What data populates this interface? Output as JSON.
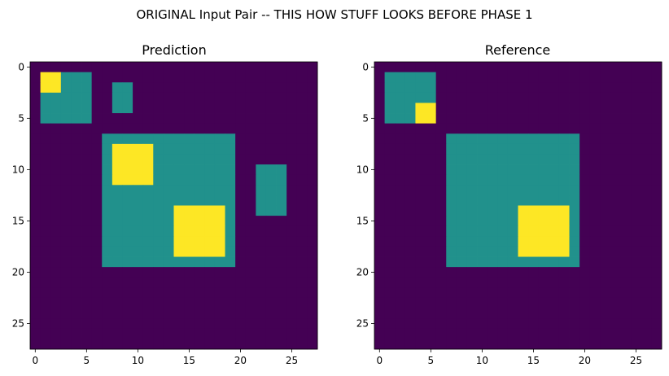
{
  "figure": {
    "suptitle": "ORIGINAL Input Pair -- THIS HOW STUFF LOOKS BEFORE PHASE 1"
  },
  "colors": {
    "background": "#440154",
    "teal": "#21918c",
    "yellow": "#fde725"
  },
  "chart_data": [
    {
      "type": "heatmap",
      "title": "Prediction",
      "grid_size": [
        28,
        28
      ],
      "xlim": [
        -0.5,
        27.5
      ],
      "ylim": [
        27.5,
        -0.5
      ],
      "xticks": [
        0,
        5,
        10,
        15,
        20,
        25
      ],
      "yticks": [
        0,
        5,
        10,
        15,
        20,
        25
      ],
      "xtick_labels": [
        "0",
        "5",
        "10",
        "15",
        "20",
        "25"
      ],
      "ytick_labels": [
        "0",
        "5",
        "10",
        "15",
        "20",
        "25"
      ],
      "background_value": 0,
      "regions": [
        {
          "value": 1,
          "rows": [
            1,
            5
          ],
          "cols": [
            1,
            5
          ]
        },
        {
          "value": 2,
          "rows": [
            1,
            2
          ],
          "cols": [
            1,
            2
          ]
        },
        {
          "value": 1,
          "rows": [
            2,
            4
          ],
          "cols": [
            8,
            9
          ]
        },
        {
          "value": 1,
          "rows": [
            7,
            19
          ],
          "cols": [
            7,
            19
          ]
        },
        {
          "value": 2,
          "rows": [
            8,
            11
          ],
          "cols": [
            8,
            11
          ]
        },
        {
          "value": 2,
          "rows": [
            14,
            18
          ],
          "cols": [
            14,
            18
          ]
        },
        {
          "value": 1,
          "rows": [
            10,
            14
          ],
          "cols": [
            22,
            24
          ]
        }
      ]
    },
    {
      "type": "heatmap",
      "title": "Reference",
      "grid_size": [
        28,
        28
      ],
      "xlim": [
        -0.5,
        27.5
      ],
      "ylim": [
        27.5,
        -0.5
      ],
      "xticks": [
        0,
        5,
        10,
        15,
        20,
        25
      ],
      "yticks": [
        0,
        5,
        10,
        15,
        20,
        25
      ],
      "xtick_labels": [
        "0",
        "5",
        "10",
        "15",
        "20",
        "25"
      ],
      "ytick_labels": [
        "0",
        "5",
        "10",
        "15",
        "20",
        "25"
      ],
      "background_value": 0,
      "regions": [
        {
          "value": 1,
          "rows": [
            1,
            5
          ],
          "cols": [
            1,
            5
          ]
        },
        {
          "value": 2,
          "rows": [
            4,
            5
          ],
          "cols": [
            4,
            5
          ]
        },
        {
          "value": 1,
          "rows": [
            7,
            19
          ],
          "cols": [
            7,
            19
          ]
        },
        {
          "value": 2,
          "rows": [
            14,
            18
          ],
          "cols": [
            14,
            18
          ]
        }
      ]
    }
  ]
}
